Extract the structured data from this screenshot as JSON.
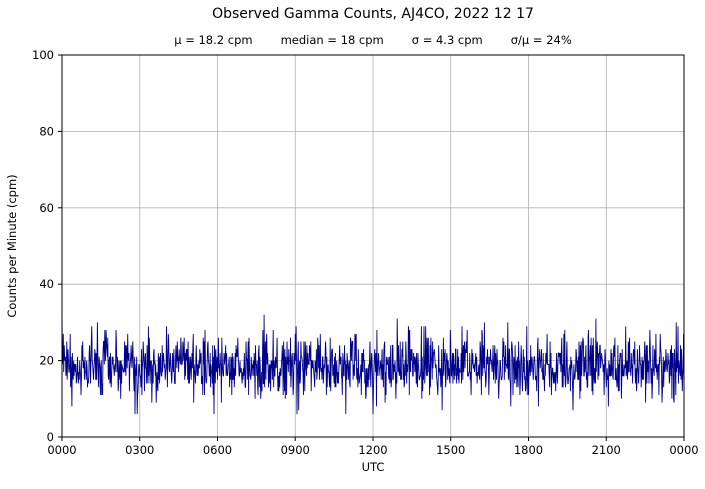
{
  "header": {
    "title": "Observed Gamma Counts, AJ4CO, 2022 12 17",
    "stats": [
      "μ = 18.2 cpm",
      "median = 18 cpm",
      "σ = 4.3 cpm",
      "σ/μ = 24%"
    ]
  },
  "chart_data": {
    "type": "line",
    "title": "Observed Gamma Counts, AJ4CO, 2022 12 17",
    "subtitle_stats": {
      "mean_cpm": 18.2,
      "median_cpm": 18,
      "sigma_cpm": 4.3,
      "sigma_over_mean_pct": 24
    },
    "xlabel": "UTC",
    "ylabel": "Counts per Minute (cpm)",
    "x_tick_labels": [
      "0000",
      "0300",
      "0600",
      "0900",
      "1200",
      "1500",
      "1800",
      "2100",
      "0000"
    ],
    "y_ticks": [
      0,
      20,
      40,
      60,
      80,
      100
    ],
    "ylim": [
      0,
      100
    ],
    "x_range_minutes": [
      0,
      1440
    ],
    "grid": true,
    "legend": "none",
    "series": [
      {
        "name": "observed gamma counts per minute",
        "points_per_day": 1441,
        "mean": 18.2,
        "median": 18,
        "sigma": 4.3,
        "min": 6,
        "max": 34,
        "seed": 20221217,
        "color": "#00008B",
        "note": "dense per-minute noise band around 18 cpm; individual points synthesized from the displayed statistics"
      }
    ],
    "colors": {
      "line": "#00008B",
      "grid": "#b0b0b0",
      "axis": "#000000",
      "background": "#ffffff"
    }
  }
}
